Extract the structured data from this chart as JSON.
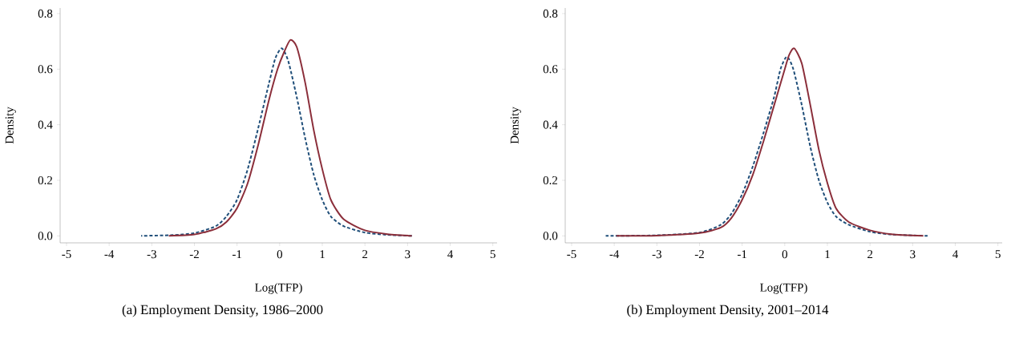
{
  "chart_data": [
    {
      "type": "line",
      "xlabel": "Log(TFP)",
      "ylabel": "Density",
      "annotations": [
        "(a) Employment Density, 1986–2000"
      ],
      "xlim": [
        -5.15,
        5.1
      ],
      "ylim": [
        -0.025,
        0.82
      ],
      "xticks": [
        -5,
        -4,
        -3,
        -2,
        -1,
        0,
        1,
        2,
        3,
        4,
        5
      ],
      "yticks": [
        {
          "value": 0,
          "label": "0.0"
        },
        {
          "value": 0.2,
          "label": "0.2"
        },
        {
          "value": 0.4,
          "label": "0.4"
        },
        {
          "value": 0.6,
          "label": "0.6"
        },
        {
          "value": 0.8,
          "label": "0.8"
        }
      ],
      "series": [
        {
          "color": "#1f4e79",
          "line_style": "dashed",
          "x": [
            -3.25,
            -2.5,
            -2,
            -1.5,
            -1.25,
            -1,
            -0.75,
            -0.5,
            -0.25,
            -0.1,
            0.05,
            0.2,
            0.4,
            0.6,
            0.8,
            1.0,
            1.2,
            1.5,
            2,
            2.5,
            3.1
          ],
          "values": [
            0,
            0.003,
            0.01,
            0.035,
            0.07,
            0.13,
            0.24,
            0.39,
            0.55,
            0.64,
            0.675,
            0.63,
            0.5,
            0.35,
            0.22,
            0.13,
            0.07,
            0.035,
            0.012,
            0.004,
            0
          ]
        },
        {
          "color": "#8b2e3a",
          "line_style": "solid",
          "x": [
            -2.6,
            -2,
            -1.5,
            -1.25,
            -1,
            -0.75,
            -0.5,
            -0.25,
            -0.05,
            0.1,
            0.25,
            0.4,
            0.6,
            0.8,
            1.0,
            1.2,
            1.5,
            2,
            2.5,
            3.1
          ],
          "values": [
            0,
            0.005,
            0.025,
            0.05,
            0.1,
            0.19,
            0.33,
            0.49,
            0.6,
            0.66,
            0.705,
            0.68,
            0.55,
            0.38,
            0.24,
            0.13,
            0.06,
            0.02,
            0.007,
            0
          ]
        }
      ]
    },
    {
      "type": "line",
      "xlabel": "Log(TFP)",
      "ylabel": "Density",
      "annotations": [
        "(b) Employment Density, 2001–2014"
      ],
      "xlim": [
        -5.15,
        5.1
      ],
      "ylim": [
        -0.025,
        0.82
      ],
      "xticks": [
        -5,
        -4,
        -3,
        -2,
        -1,
        0,
        1,
        2,
        3,
        4,
        5
      ],
      "yticks": [
        {
          "value": 0,
          "label": "0.0"
        },
        {
          "value": 0.2,
          "label": "0.2"
        },
        {
          "value": 0.4,
          "label": "0.4"
        },
        {
          "value": 0.6,
          "label": "0.6"
        },
        {
          "value": 0.8,
          "label": "0.8"
        }
      ],
      "series": [
        {
          "color": "#1f4e79",
          "line_style": "dashed",
          "x": [
            -4.2,
            -3,
            -2,
            -1.5,
            -1.25,
            -1,
            -0.75,
            -0.5,
            -0.25,
            -0.1,
            0.05,
            0.2,
            0.4,
            0.6,
            0.8,
            1.0,
            1.2,
            1.5,
            2,
            2.5,
            3.35
          ],
          "values": [
            0,
            0.002,
            0.012,
            0.04,
            0.08,
            0.15,
            0.25,
            0.37,
            0.5,
            0.6,
            0.645,
            0.6,
            0.47,
            0.32,
            0.2,
            0.12,
            0.07,
            0.04,
            0.015,
            0.005,
            0
          ]
        },
        {
          "color": "#8b2e3a",
          "line_style": "solid",
          "x": [
            -3.95,
            -3,
            -2,
            -1.5,
            -1.25,
            -1,
            -0.75,
            -0.5,
            -0.25,
            0,
            0.1,
            0.22,
            0.4,
            0.6,
            0.8,
            1.0,
            1.2,
            1.5,
            2,
            2.5,
            3.25
          ],
          "values": [
            0,
            0.001,
            0.01,
            0.03,
            0.065,
            0.13,
            0.22,
            0.34,
            0.47,
            0.6,
            0.65,
            0.675,
            0.62,
            0.47,
            0.31,
            0.19,
            0.1,
            0.05,
            0.02,
            0.006,
            0
          ]
        }
      ]
    }
  ]
}
